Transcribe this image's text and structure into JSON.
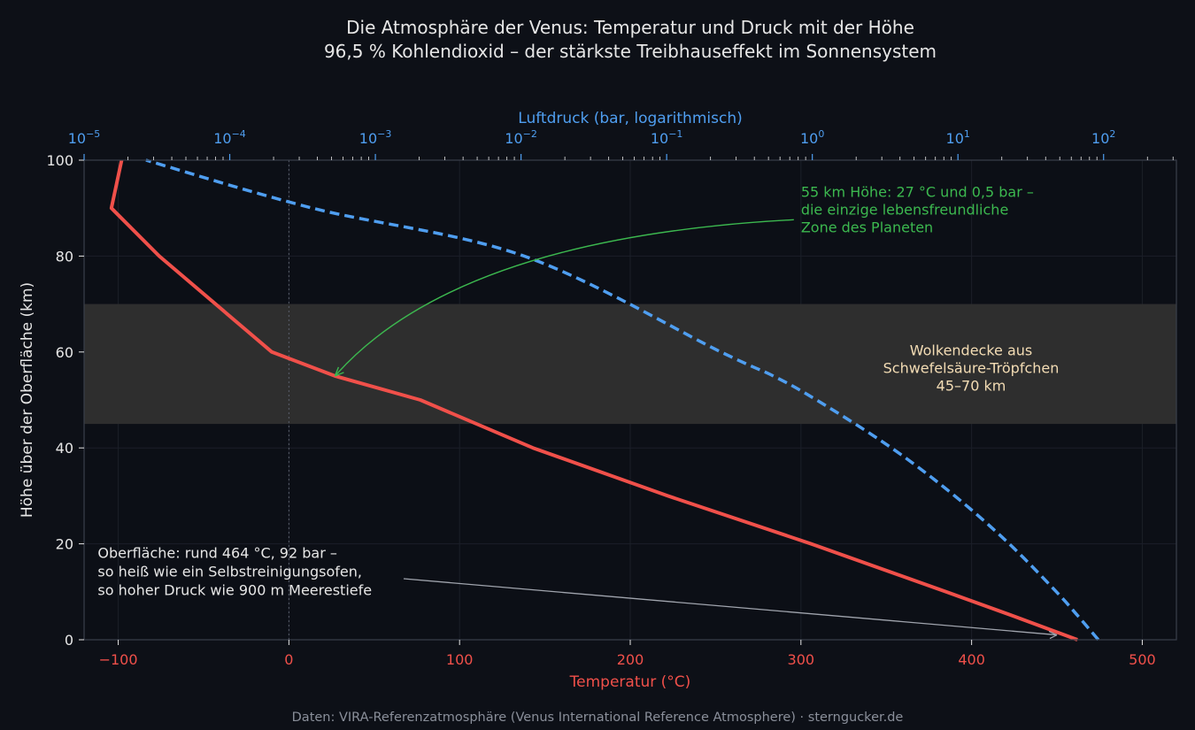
{
  "chart_data": {
    "type": "line",
    "title": "Die Atmosphäre der Venus: Temperatur und Druck mit der Höhe",
    "subtitle": "96,5 % Kohlendioxid – der stärkste Treibhauseffekt im Sonnensystem",
    "xlabel": "Temperatur (°C)",
    "ylabel": "Höhe über der Oberfläche (km)",
    "x2label": "Luftdruck (bar, logarithmisch)",
    "xlim": [
      -120,
      520
    ],
    "ylim": [
      0,
      100
    ],
    "x2lim_exp": [
      -5,
      2.5
    ],
    "x2scale": "log",
    "xticks": [
      -100,
      0,
      100,
      200,
      300,
      400,
      500
    ],
    "xtick_labels": [
      "−100",
      "0",
      "100",
      "200",
      "300",
      "400",
      "500"
    ],
    "yticks": [
      0,
      20,
      40,
      60,
      80,
      100
    ],
    "ytick_labels": [
      "0",
      "20",
      "40",
      "60",
      "80",
      "100"
    ],
    "x2ticks": [
      -5,
      -4,
      -3,
      -2,
      -1,
      0,
      1,
      2
    ],
    "x2tick_labels": [
      "10",
      "10",
      "10",
      "10",
      "10",
      "10",
      "10",
      "10"
    ],
    "x2tick_exponents": [
      "−5",
      "−4",
      "−3",
      "−2",
      "−1",
      "0",
      "1",
      "2"
    ],
    "grid": true,
    "zero_line_x": 0,
    "series": [
      {
        "axis": "temperature",
        "color": "#f0504a",
        "style": "solid",
        "points": [
          [
            462,
            0
          ],
          [
            424,
            5
          ],
          [
            385,
            10
          ],
          [
            306,
            20
          ],
          [
            222,
            30
          ],
          [
            143,
            40
          ],
          [
            77,
            50
          ],
          [
            27,
            55
          ],
          [
            -10,
            60
          ],
          [
            -76,
            80
          ],
          [
            -104,
            90
          ],
          [
            -98,
            100
          ]
        ]
      },
      {
        "axis": "pressure",
        "color": "#4f9ef0",
        "style": "dashed",
        "points": [
          [
            92,
            0
          ],
          [
            66.5,
            5
          ],
          [
            47.4,
            10
          ],
          [
            22.5,
            20
          ],
          [
            9.5,
            30
          ],
          [
            3.5,
            40
          ],
          [
            1.07,
            50
          ],
          [
            0.54,
            55
          ],
          [
            0.236,
            60
          ],
          [
            0.0105,
            80
          ],
          [
            0.00037,
            90
          ],
          [
            2.66e-05,
            100
          ]
        ]
      }
    ],
    "band": {
      "y": [
        45,
        70
      ],
      "color": "#2e2e2e",
      "label_lines": [
        "Wolkendecke aus",
        "Schwefelsäure-Tröpfchen",
        "45–70 km"
      ],
      "label_color": "#f3dcb4"
    },
    "annotations": [
      {
        "lines": [
          "55 km Höhe: 27 °C und 0,5 bar –",
          "die einzige lebensfreundliche",
          "Zone des Planeten"
        ],
        "color": "#3cb84f",
        "point": [
          27,
          55
        ],
        "text_at": [
          300,
          92
        ]
      },
      {
        "lines": [
          "Oberfläche: rund 464 °C, 92 bar –",
          "so heiß wie ein Selbstreinigungsofen,",
          "so hoher Druck wie 900 m Meerestiefe"
        ],
        "color": "#e6e6e6",
        "point": [
          450,
          1
        ],
        "text_at": [
          -112,
          18
        ]
      }
    ],
    "axis_colors": {
      "temperature": "#f0504a",
      "pressure": "#4f9ef0",
      "text": "#e6e6e6",
      "frame": "#3a3f4b",
      "grid": "#1b1f28"
    }
  },
  "footer": "Daten: VIRA-Referenzatmosphäre (Venus International Reference Atmosphere) · sterngucker.de"
}
